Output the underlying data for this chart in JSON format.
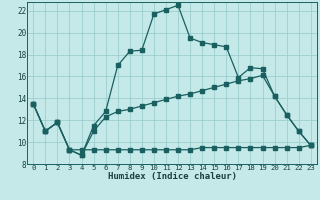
{
  "xlabel": "Humidex (Indice chaleur)",
  "bg_color": "#c5e8e8",
  "line_color": "#1a6060",
  "grid_color": "#9ccece",
  "xlim": [
    -0.5,
    23.5
  ],
  "ylim": [
    8,
    22.8
  ],
  "xticks": [
    0,
    1,
    2,
    3,
    4,
    5,
    6,
    7,
    8,
    9,
    10,
    11,
    12,
    13,
    14,
    15,
    16,
    17,
    18,
    19,
    20,
    21,
    22,
    23
  ],
  "yticks": [
    8,
    10,
    12,
    14,
    16,
    18,
    20,
    22
  ],
  "line1_x": [
    0,
    1,
    2,
    3,
    4,
    5,
    6,
    7,
    8,
    9,
    10,
    11,
    12,
    13,
    14,
    15,
    16,
    17,
    18,
    19,
    20,
    21,
    22,
    23
  ],
  "line1_y": [
    13.5,
    11.0,
    11.8,
    9.3,
    8.8,
    11.5,
    12.8,
    17.0,
    18.3,
    18.4,
    21.7,
    22.1,
    22.5,
    19.5,
    19.1,
    18.9,
    18.7,
    15.9,
    16.8,
    16.7,
    14.2,
    12.5,
    11.0,
    9.7
  ],
  "line2_x": [
    0,
    1,
    2,
    3,
    4,
    5,
    6,
    7,
    8,
    9,
    10,
    11,
    12,
    13,
    14,
    15,
    16,
    17,
    18,
    19,
    20,
    21,
    22,
    23
  ],
  "line2_y": [
    13.5,
    11.0,
    11.8,
    9.3,
    8.8,
    11.0,
    12.3,
    12.8,
    13.0,
    13.3,
    13.6,
    13.9,
    14.2,
    14.4,
    14.7,
    15.0,
    15.3,
    15.6,
    15.8,
    16.1,
    14.2,
    12.5,
    11.0,
    9.7
  ],
  "line3_x": [
    0,
    1,
    2,
    3,
    4,
    5,
    6,
    7,
    8,
    9,
    10,
    11,
    12,
    13,
    14,
    15,
    16,
    17,
    18,
    19,
    20,
    21,
    22,
    23
  ],
  "line3_y": [
    13.5,
    11.0,
    11.8,
    9.3,
    9.3,
    9.3,
    9.3,
    9.3,
    9.3,
    9.3,
    9.3,
    9.3,
    9.3,
    9.3,
    9.5,
    9.5,
    9.5,
    9.5,
    9.5,
    9.5,
    9.5,
    9.5,
    9.5,
    9.7
  ]
}
